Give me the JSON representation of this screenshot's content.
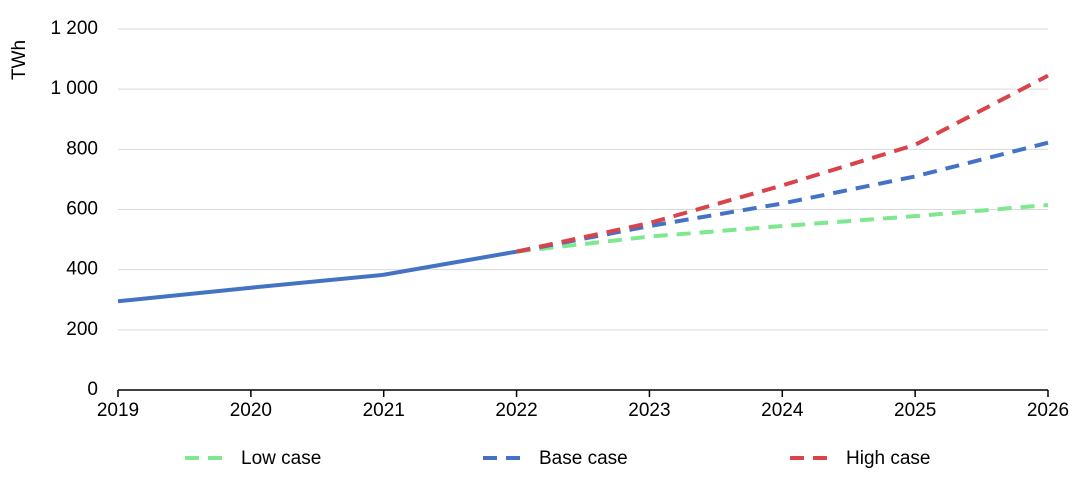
{
  "chart_data": {
    "type": "line",
    "y_label": "TWh",
    "x": [
      2019,
      2020,
      2021,
      2022,
      2023,
      2024,
      2025,
      2026
    ],
    "xlim": [
      2019,
      2026
    ],
    "xticks": [
      2019,
      2020,
      2021,
      2022,
      2023,
      2024,
      2025,
      2026
    ],
    "ylim": [
      0,
      1200
    ],
    "yticks": [
      0,
      200,
      400,
      600,
      800,
      {
        "value": 1000,
        "label": "1 000"
      },
      {
        "value": 1200,
        "label": "1 200"
      }
    ],
    "grid": true,
    "legend": "bottom",
    "series": [
      {
        "color": "#4472c4",
        "dashed": false,
        "values": [
          295,
          340,
          383,
          460,
          null,
          null,
          null,
          null
        ]
      },
      {
        "name": "Low case",
        "color": "#7ee891",
        "dashed": true,
        "values": [
          null,
          null,
          null,
          460,
          510,
          545,
          578,
          615
        ]
      },
      {
        "name": "Base case",
        "color": "#4472c4",
        "dashed": true,
        "values": [
          null,
          null,
          null,
          460,
          545,
          620,
          710,
          822
        ]
      },
      {
        "name": "High case",
        "color": "#d9434a",
        "dashed": true,
        "values": [
          null,
          null,
          null,
          460,
          555,
          680,
          815,
          1045
        ]
      }
    ]
  }
}
